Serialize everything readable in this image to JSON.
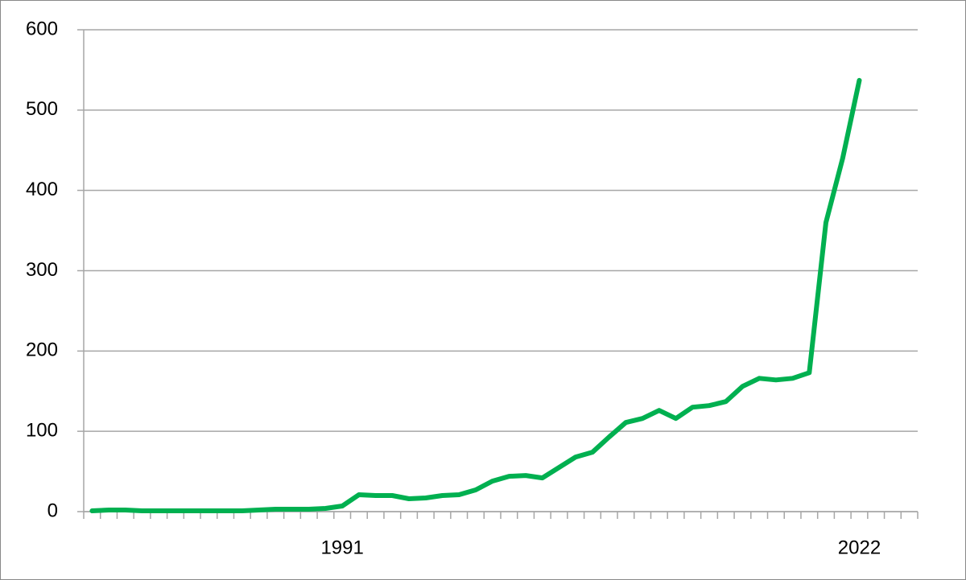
{
  "chart_data": {
    "type": "line",
    "categories": [
      null,
      null,
      null,
      null,
      null,
      null,
      null,
      null,
      null,
      null,
      null,
      null,
      null,
      null,
      null,
      "1991",
      null,
      null,
      null,
      null,
      null,
      null,
      null,
      null,
      null,
      null,
      null,
      null,
      null,
      null,
      null,
      null,
      null,
      null,
      null,
      null,
      null,
      null,
      null,
      null,
      null,
      null,
      null,
      null,
      null,
      null,
      "2022",
      null,
      null,
      null
    ],
    "values": [
      1,
      2,
      2,
      1,
      1,
      1,
      1,
      1,
      1,
      1,
      2,
      3,
      3,
      3,
      4,
      7,
      21,
      20,
      20,
      16,
      17,
      20,
      21,
      27,
      38,
      44,
      45,
      42,
      55,
      68,
      74,
      93,
      111,
      116,
      126,
      116,
      130,
      132,
      137,
      156,
      166,
      164,
      166,
      173,
      360,
      440,
      537,
      null,
      null,
      null
    ],
    "color": "#00b050",
    "ylim": [
      0,
      600
    ],
    "yticks": [
      0,
      100,
      200,
      300,
      400,
      500,
      600
    ],
    "grid": true
  }
}
